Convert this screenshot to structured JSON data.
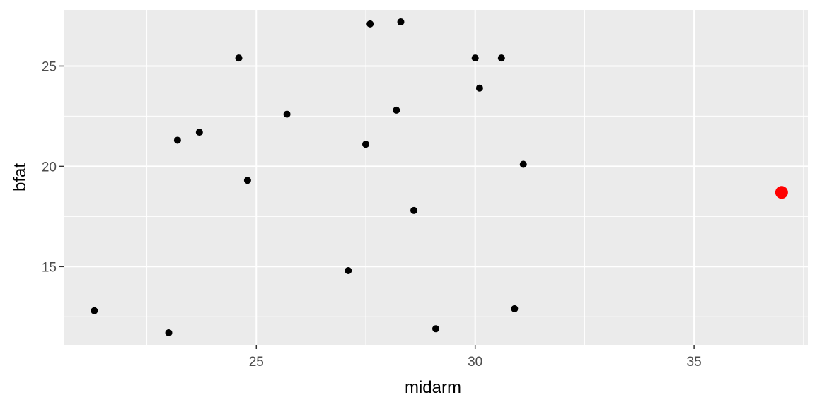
{
  "chart_data": {
    "type": "scatter",
    "xlabel": "midarm",
    "ylabel": "bfat",
    "xlim": [
      20.6,
      37.6
    ],
    "ylim": [
      11.1,
      27.8
    ],
    "x_ticks": [
      25,
      30,
      35
    ],
    "y_ticks": [
      15,
      20,
      25
    ],
    "x_minor_ticks": [
      22.5,
      27.5,
      32.5,
      37.5
    ],
    "y_minor_ticks": [
      12.5,
      17.5,
      22.5,
      27.5
    ],
    "grid": true,
    "panel_background": "#ebebeb",
    "grid_color": "#ffffff",
    "points": [
      {
        "x": 21.3,
        "y": 12.8
      },
      {
        "x": 23.0,
        "y": 11.7
      },
      {
        "x": 23.2,
        "y": 21.3
      },
      {
        "x": 23.7,
        "y": 21.7
      },
      {
        "x": 24.6,
        "y": 25.4
      },
      {
        "x": 24.8,
        "y": 19.3
      },
      {
        "x": 25.7,
        "y": 22.6
      },
      {
        "x": 27.1,
        "y": 14.8
      },
      {
        "x": 27.5,
        "y": 21.1
      },
      {
        "x": 27.6,
        "y": 27.1
      },
      {
        "x": 28.2,
        "y": 22.8
      },
      {
        "x": 28.3,
        "y": 27.2
      },
      {
        "x": 28.6,
        "y": 17.8
      },
      {
        "x": 29.1,
        "y": 11.9
      },
      {
        "x": 30.0,
        "y": 25.4
      },
      {
        "x": 30.1,
        "y": 23.9
      },
      {
        "x": 30.6,
        "y": 25.4
      },
      {
        "x": 30.9,
        "y": 12.9
      },
      {
        "x": 31.1,
        "y": 20.1
      }
    ],
    "highlight_point": {
      "x": 37.0,
      "y": 18.7,
      "color": "#ff0000"
    },
    "point_color": "#000000"
  }
}
